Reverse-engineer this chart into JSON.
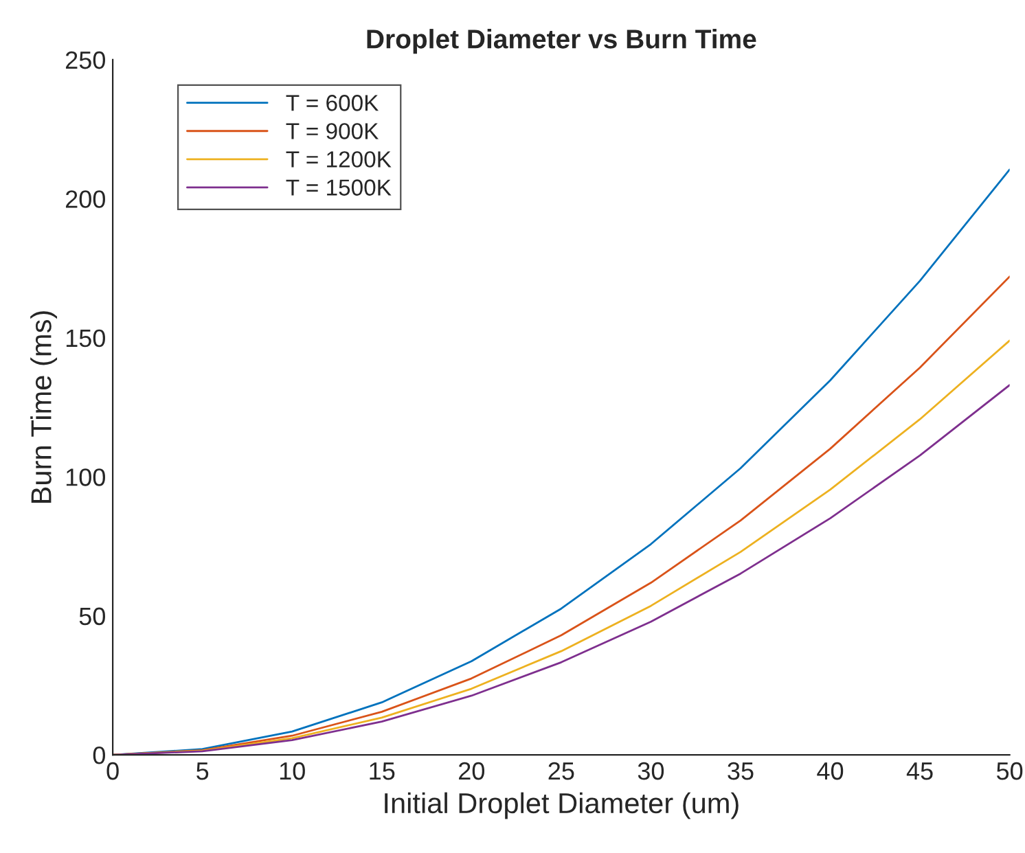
{
  "chart_data": {
    "type": "line",
    "title": "Droplet Diameter vs Burn Time",
    "xlabel": "Initial Droplet Diameter (um)",
    "ylabel": "Burn Time (ms)",
    "x": [
      0,
      5,
      10,
      15,
      20,
      25,
      30,
      35,
      40,
      45,
      50
    ],
    "series": [
      {
        "name": "T = 600K",
        "color": "#0072bd",
        "values": [
          0,
          2.1,
          8.4,
          18.9,
          33.7,
          52.6,
          75.8,
          103.1,
          134.7,
          170.5,
          210.5
        ]
      },
      {
        "name": "T = 900K",
        "color": "#d95319",
        "values": [
          0,
          1.7,
          6.9,
          15.5,
          27.5,
          43,
          61.9,
          84.3,
          110.1,
          139.3,
          172
        ]
      },
      {
        "name": "T = 1200K",
        "color": "#edb120",
        "values": [
          0,
          1.5,
          6,
          13.4,
          23.8,
          37.3,
          53.6,
          73,
          95.4,
          120.7,
          149
        ]
      },
      {
        "name": "T = 1500K",
        "color": "#7e2f8e",
        "values": [
          0,
          1.3,
          5.3,
          12,
          21.3,
          33.3,
          47.9,
          65.2,
          85.1,
          107.7,
          133
        ]
      }
    ],
    "xlim": [
      0,
      50
    ],
    "xticks": [
      0,
      5,
      10,
      15,
      20,
      25,
      30,
      35,
      40,
      45,
      50
    ],
    "ylim": [
      0,
      250
    ],
    "yticks": [
      0,
      50,
      100,
      150,
      200,
      250
    ],
    "grid": false,
    "legend": "top left",
    "marker": "none",
    "line_style": "solid"
  }
}
